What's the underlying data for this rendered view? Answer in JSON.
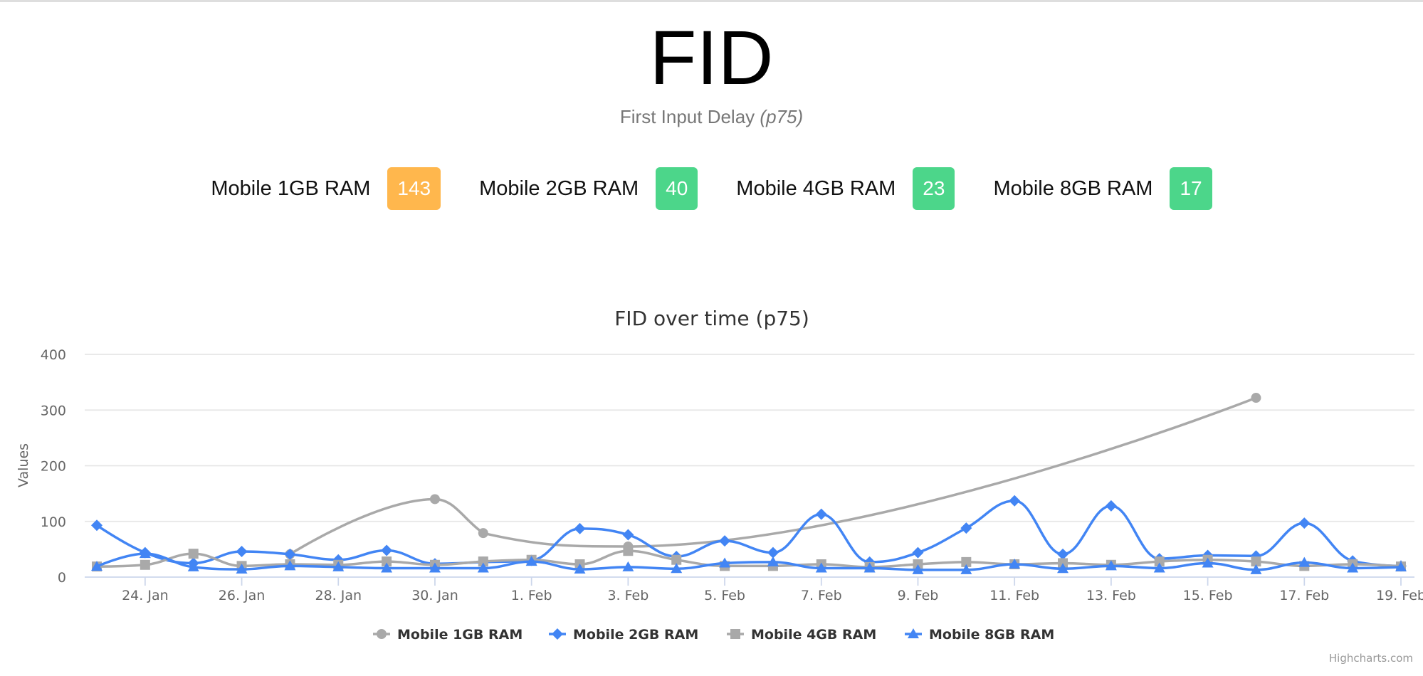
{
  "header": {
    "title": "FID",
    "subtitle": "First Input Delay",
    "subtitle_qualifier": "(p75)"
  },
  "summary": [
    {
      "label": "Mobile 1GB RAM",
      "value": "143",
      "color": "#ffb74d"
    },
    {
      "label": "Mobile 2GB RAM",
      "value": "40",
      "color": "#4cd68a"
    },
    {
      "label": "Mobile 4GB RAM",
      "value": "23",
      "color": "#4cd68a"
    },
    {
      "label": "Mobile 8GB RAM",
      "value": "17",
      "color": "#4cd68a"
    }
  ],
  "chart_data": {
    "type": "line",
    "smoothing": "spline",
    "title": "FID over time (p75)",
    "xlabel": "",
    "ylabel": "Values",
    "ylim": [
      0,
      400
    ],
    "yticks": [
      0,
      100,
      200,
      300,
      400
    ],
    "grid": true,
    "legend_position": "bottom-center",
    "x": [
      "23. Jan",
      "24. Jan",
      "25. Jan",
      "26. Jan",
      "27. Jan",
      "28. Jan",
      "29. Jan",
      "30. Jan",
      "31. Jan",
      "1. Feb",
      "2. Feb",
      "3. Feb",
      "4. Feb",
      "5. Feb",
      "6. Feb",
      "7. Feb",
      "8. Feb",
      "9. Feb",
      "10. Feb",
      "11. Feb",
      "12. Feb",
      "13. Feb",
      "14. Feb",
      "15. Feb",
      "16. Feb",
      "17. Feb",
      "18. Feb",
      "19. Feb"
    ],
    "x_tick_labels": [
      "24. Jan",
      "26. Jan",
      "28. Jan",
      "30. Jan",
      "1. Feb",
      "3. Feb",
      "5. Feb",
      "7. Feb",
      "9. Feb",
      "11. Feb",
      "13. Feb",
      "15. Feb",
      "17. Feb",
      "19. Feb"
    ],
    "series": [
      {
        "name": "Mobile 1GB RAM",
        "color": "#a9a9a9",
        "marker": "circle",
        "values": [
          null,
          null,
          null,
          null,
          41,
          null,
          null,
          140,
          79,
          null,
          null,
          55,
          null,
          null,
          null,
          null,
          null,
          null,
          null,
          null,
          null,
          null,
          null,
          null,
          322,
          null,
          null,
          null
        ]
      },
      {
        "name": "Mobile 2GB RAM",
        "color": "#4285f4",
        "marker": "diamond",
        "values": [
          93,
          44,
          25,
          46,
          41,
          31,
          48,
          24,
          27,
          30,
          87,
          76,
          37,
          65,
          44,
          113,
          27,
          44,
          88,
          137,
          41,
          128,
          33,
          39,
          38,
          97,
          29,
          20
        ]
      },
      {
        "name": "Mobile 4GB RAM",
        "color": "#a9a9a9",
        "marker": "square",
        "values": [
          19,
          22,
          42,
          20,
          23,
          22,
          28,
          22,
          28,
          31,
          23,
          47,
          31,
          20,
          20,
          23,
          18,
          23,
          27,
          23,
          25,
          22,
          28,
          31,
          28,
          20,
          23,
          19
        ]
      },
      {
        "name": "Mobile 8GB RAM",
        "color": "#4285f4",
        "marker": "triangle",
        "values": [
          19,
          42,
          18,
          14,
          20,
          18,
          16,
          16,
          16,
          28,
          14,
          18,
          15,
          25,
          27,
          16,
          16,
          13,
          13,
          23,
          15,
          20,
          16,
          25,
          13,
          26,
          16,
          18
        ]
      }
    ]
  },
  "credits": {
    "label": "Highcharts.com"
  }
}
